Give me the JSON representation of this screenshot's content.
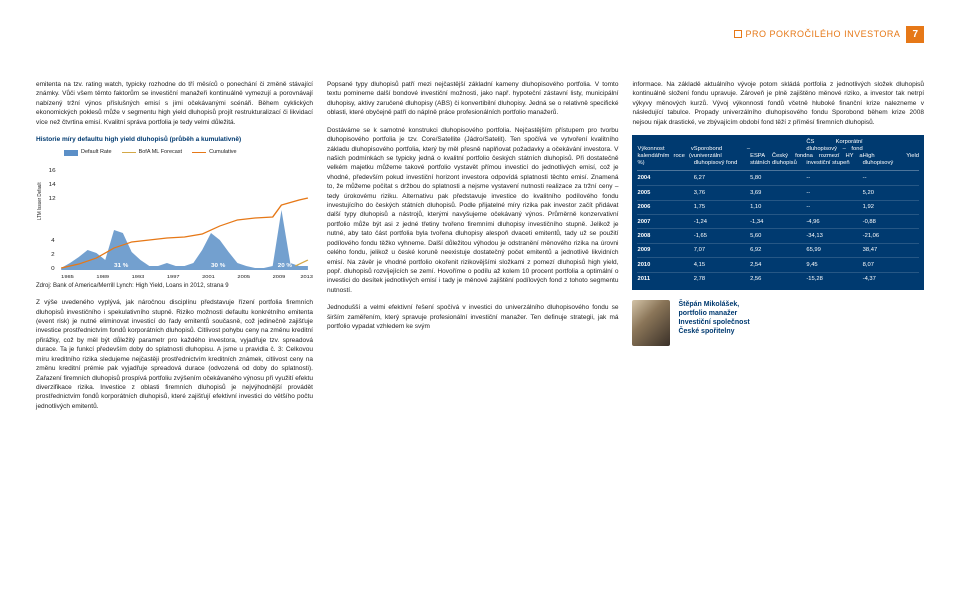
{
  "header": {
    "label": "PRO POKROČILÉHO",
    "label2": "INVESTORA",
    "page": "7"
  },
  "col1": {
    "p1": "emitenta na tzv. rating watch, typicky rozhodne do tří měsíců o ponechání či změně stávající známky. Vůči všem těmto faktorům se investiční manažeři kontinuálně vymezují a porovnávají nabízený tržní výnos příslušných emisí s jimi očekávanými scénáři. Během cyklických ekonomických poklesů může v segmentu high yield dluhopisů projít restrukturalizací či likvidací více než čtvrtina emisí. Kvalitní správa portfolia je tedy velmi důležitá.",
    "chart_title": "Historie míry defaultu high yield dluhopisů (průběh a kumulativně)",
    "chart_caption": "Zdroj: Bank of America/Merrill Lynch: High Yield, Loans in 2012, strana 9",
    "p2": "Z výše uvedeného vyplývá, jak náročnou disciplínu představuje řízení portfolia firemních dluhopisů investičního i spekulativního stupně. Riziko možnosti defaultu konkrétního emitenta (event risk) je nutné eliminovat investicí do řady emitentů současně, což jedinečně zajišťuje investice prostřednictvím fondů korporátních dluhopisů. Citlivost pohybu ceny na změnu kreditní přirážky, což by měl být důležitý parametr pro každého investora, vyjadřuje tzv. spreadová durace. Ta je funkcí především doby do splatnosti dluhopisu. A jsme u pravidla č. 3: Celkovou míru kreditního rizika sledujeme nejčastěji prostřednictvím kreditních známek, citlivost ceny na změnu kreditní prémie pak vyjadřuje spreadová durace (odvozená od doby do splatnosti). Zařazení firemních dluhopisů prospívá portfoliu zvýšením očekávaného výnosu při využití efektu diverzifikace rizika. Investice z oblasti firemních dluhopisů je nejvýhodnější provádět prostřednictvím fondů korporátních dluhopisů, které zajišťují efektivní investici do většího počtu jednotlivých emitentů."
  },
  "col2": {
    "p1": "Popsané typy dluhopisů patří mezi nejčastější základní kameny dluhopisového portfolia. V tomto textu pomineme další bondové investiční možnosti, jako např. hypoteční zástavní listy, municipální dluhopisy, aktivy zaručené dluhopisy (ABS) či konvertibilní dluhopisy. Jedná se o relativně specifické oblasti, které obyčejně patří do náplně práce profesionálních portfolio manažerů.",
    "p2": "Dostáváme se k samotné konstrukci dluhopisového portfolia. Nejčastějším přístupem pro tvorbu dluhopisového portfolia je tzv. Core/Satellite (Jádro/Satelit). Ten spočívá ve vytvoření kvalitního základu dluhopisového portfolia, který by měl přesně naplňovat požadavky a očekávání investora. V našich podmínkách se typicky jedná o kvalitní portfolio českých státních dluhopisů. Při dostatečně velkém majetku můžeme takové portfolio vystavět přímou investicí do jednotlivých emisí, což je vhodné, především pokud investiční horizont investora odpovídá splatnosti těchto emisí. Znamená to, že můžeme počítat s držbou do splatnosti a nejsme vystavení nutnosti realizace za tržní ceny – tedy úrokovému riziku. Alternativu pak představuje investice do kvalitního podílového fondu investujícího do českých státních dluhopisů. Podle přijatelné míry rizika pak investor začít přidávat další typy dluhopisů a nástrojů, kterými navyšujeme očekávaný výnos. Průměrně konzervativní portfolio může být asi z jedné třetiny tvořeno firemními dluhopisy investičního stupně. Jelikož je nutné, aby tato část portfolia byla tvořena dluhopisy alespoň dvaceti emitentů, tady už se použití podílového fondu těžko vyhneme. Další důležitou výhodou je odstranění měnového rizika na úrovni celého fondu, jelikož u české koruně neexistuje dostatečný počet emitentů a jednotlivě likvidních emisí. Na závěr je vhodné portfolio okořenit rizikovějšími složkami z pomezí dluhopisů high yield, popř. dluhopisů rozvíjejících se zemí. Hovoříme o podílu až kolem 10 procent portfolia a optimální o investici do desítek jednotlivých emisí i tady je měnové zajištění podílových fond z tohoto segmentu nutností.",
    "p3": "Jednodušší a velmi efektivní řešení spočívá v investici do univerzálního dluhopisového fondu se širším zaměřením, který spravuje profesionální investiční manažer. Ten definuje strategii, jak má portfolio vypadat vzhledem ke svým"
  },
  "col3": {
    "p1": "informace. Na základě aktuálního vývoje potom skládá portfolia z jednotlivých složek dluhopisů kontinuálně složení fondu upravuje. Zároveň je plně zajištěno měnové riziko, a investor tak netrpí výkyvy měnových kurzů. Vývoj výkonnosti fondů včetně hluboké finanční krize nalezneme v následující tabulce. Propady univerzálního dluhopisového fondu Sporobond během krize 2008 nejsou nijak drastické, ve zbývajícím období fond těží z příměsí firemních dluhopisů."
  },
  "table": {
    "header": [
      "Výkonnost v kalendářním roce (v %)",
      "Sporobond – univerzální dluhopisový fond",
      "ESPA Český fond státních dluhopisů",
      "ČS Korporátní dluhopisový – fond na rozmezí HY a investiční stupeň",
      "High Yield dluhopisový"
    ],
    "rows": [
      [
        "2004",
        "6,27",
        "5,80",
        "--",
        "--"
      ],
      [
        "2005",
        "3,76",
        "3,69",
        "--",
        "5,20"
      ],
      [
        "2006",
        "1,75",
        "1,10",
        "--",
        "1,92"
      ],
      [
        "2007",
        "-1,24",
        "-1,34",
        "-4,96",
        "-0,88"
      ],
      [
        "2008",
        "-1,65",
        "5,60",
        "-34,13",
        "-21,06"
      ],
      [
        "2009",
        "7,07",
        "6,92",
        "65,99",
        "38,47"
      ],
      [
        "2010",
        "4,15",
        "2,54",
        "9,45",
        "8,07"
      ],
      [
        "2011",
        "2,78",
        "2,56",
        "-15,28",
        "-4,37"
      ]
    ]
  },
  "chart": {
    "type": "area-line",
    "legend": [
      "Default Rate",
      "BofA ML Forecast",
      "Cumulative"
    ],
    "legend_colors": [
      "#5b8fc7",
      "#d4a847",
      "#e67817"
    ],
    "ylabel": "LTM Issuer Default",
    "y_ticks": [
      0,
      2,
      4,
      12,
      14,
      16
    ],
    "x_ticks": [
      1985,
      1989,
      1993,
      1997,
      2001,
      2005,
      2009,
      2013
    ],
    "area_color": "#5b8fc7",
    "cum_line_color": "#e67817",
    "annotations": [
      "31 %",
      "30 %",
      "20 %"
    ],
    "default_series": [
      2,
      3,
      5,
      7,
      6,
      4,
      11,
      10,
      6,
      4,
      2,
      2,
      3,
      2,
      2,
      3,
      7,
      11,
      9,
      6,
      3,
      2,
      1,
      1,
      2,
      14,
      3,
      2,
      2
    ],
    "cum_series": [
      1,
      2,
      4,
      6,
      9,
      11,
      15,
      18,
      21,
      23,
      24,
      25,
      26,
      27,
      28,
      29,
      31,
      35,
      38,
      40,
      42,
      43,
      44,
      44,
      45,
      52,
      54,
      55,
      56
    ],
    "background_color": "#ffffff"
  },
  "author": {
    "name": "Štěpán Mikolášek,",
    "role": "portfolio manažer",
    "company1": "Investiční společnost",
    "company2": "České spořitelny"
  }
}
